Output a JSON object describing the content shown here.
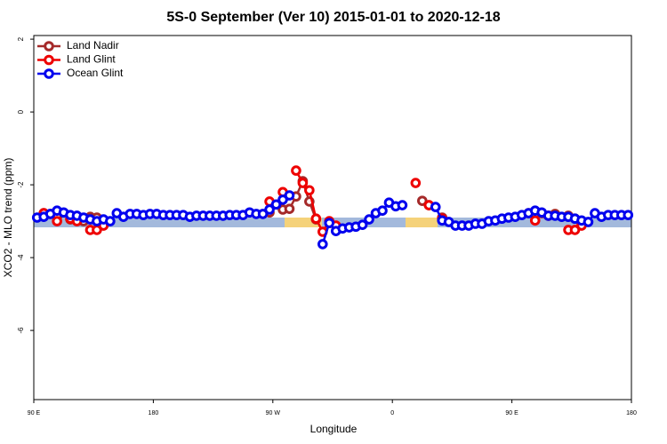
{
  "chart_data": {
    "type": "line",
    "title": "5S-0 September (Ver 10)   2015-01-01 to 2020-12-18",
    "x_label": "Longitude",
    "y_label": "XCO2 - MLO trend (ppm)",
    "x": [
      92.5,
      97.5,
      102.5,
      107.5,
      112.5,
      117.5,
      122.5,
      127.5,
      132.5,
      137.5,
      142.5,
      147.5,
      152.5,
      157.5,
      162.5,
      167.5,
      172.5,
      177.5,
      182.5,
      187.5,
      192.5,
      197.5,
      202.5,
      207.5,
      212.5,
      217.5,
      222.5,
      227.5,
      232.5,
      237.5,
      242.5,
      247.5,
      252.5,
      257.5,
      262.5,
      267.5,
      272.5,
      277.5,
      282.5,
      287.5,
      292.5,
      297.5,
      302.5,
      307.5,
      312.5,
      317.5,
      322.5,
      327.5,
      332.5,
      337.5,
      342.5,
      347.5,
      352.5,
      357.5,
      362.5,
      367.5,
      372.5,
      377.5,
      382.5,
      387.5,
      392.5,
      397.5,
      402.5,
      407.5,
      412.5,
      417.5,
      422.5,
      427.5,
      432.5,
      437.5,
      442.5,
      447.5,
      452.5,
      457.5,
      462.5,
      467.5,
      472.5,
      477.5,
      482.5,
      487.5,
      492.5,
      497.5,
      502.5,
      507.5,
      512.5,
      517.5,
      522.5,
      527.5,
      532.5,
      537.5
    ],
    "xlim": [
      90,
      540
    ],
    "xticks": [
      {
        "value": 90,
        "label": "90 E"
      },
      {
        "value": 180,
        "label": "180"
      },
      {
        "value": 270,
        "label": "90 W"
      },
      {
        "value": 360,
        "label": "0"
      },
      {
        "value": 450,
        "label": "90 E"
      },
      {
        "value": 540,
        "label": "180"
      }
    ],
    "ylim": [
      -7.9,
      2.1
    ],
    "yticks": [
      2,
      0,
      -2,
      -4,
      -6
    ],
    "legend": "top-left",
    "series": [
      {
        "name": "Land Nadir",
        "color": "#a52a2a",
        "values": [
          null,
          -2.78,
          -2.8,
          -2.88,
          null,
          -2.95,
          null,
          -3.0,
          -2.88,
          -2.9,
          -3.0,
          null,
          null,
          null,
          null,
          null,
          null,
          null,
          null,
          null,
          null,
          null,
          null,
          null,
          null,
          null,
          null,
          null,
          null,
          null,
          null,
          null,
          null,
          null,
          null,
          -2.76,
          null,
          -2.68,
          -2.66,
          -2.32,
          -1.9,
          -2.46,
          -2.95,
          null,
          -3.05,
          null,
          null,
          null,
          null,
          null,
          null,
          null,
          null,
          null,
          null,
          null,
          null,
          null,
          -2.44,
          -2.56,
          null,
          -2.9,
          null,
          null,
          null,
          null,
          null,
          null,
          null,
          null,
          null,
          null,
          null,
          null,
          -2.78,
          null,
          -2.78,
          null,
          -2.8,
          null,
          -2.85,
          -2.93,
          -3.07,
          null,
          null,
          null,
          null,
          null,
          null,
          null
        ]
      },
      {
        "name": "Land Glint",
        "color": "#ee0000",
        "values": [
          null,
          -2.78,
          null,
          -3.0,
          null,
          -2.93,
          -3.0,
          null,
          -3.24,
          -3.24,
          -3.12,
          null,
          null,
          null,
          null,
          null,
          null,
          null,
          null,
          null,
          null,
          null,
          null,
          null,
          null,
          null,
          null,
          null,
          null,
          null,
          null,
          null,
          null,
          null,
          null,
          -2.46,
          null,
          -2.2,
          null,
          -1.61,
          -1.95,
          -2.15,
          -2.93,
          -3.29,
          -3.0,
          -3.12,
          null,
          null,
          null,
          null,
          null,
          null,
          null,
          null,
          null,
          null,
          null,
          -1.95,
          null,
          -2.56,
          null,
          -2.93,
          null,
          null,
          null,
          null,
          null,
          null,
          null,
          null,
          null,
          null,
          null,
          null,
          null,
          -2.98,
          null,
          -2.85,
          null,
          null,
          -3.24,
          -3.24,
          -3.12,
          null,
          null,
          null,
          null,
          null,
          null,
          null
        ]
      },
      {
        "name": "Ocean Glint",
        "color": "#0000ee",
        "values": [
          -2.9,
          -2.88,
          -2.8,
          -2.71,
          -2.76,
          -2.83,
          -2.85,
          -2.9,
          -2.95,
          -3.0,
          -2.95,
          -3.0,
          -2.78,
          -2.88,
          -2.8,
          -2.8,
          -2.83,
          -2.8,
          -2.8,
          -2.83,
          -2.83,
          -2.83,
          -2.83,
          -2.88,
          -2.85,
          -2.85,
          -2.85,
          -2.85,
          -2.85,
          -2.83,
          -2.83,
          -2.83,
          -2.76,
          -2.8,
          -2.8,
          -2.68,
          -2.54,
          -2.41,
          -2.29,
          null,
          null,
          null,
          null,
          -3.63,
          -3.05,
          -3.27,
          -3.2,
          -3.17,
          -3.15,
          -3.1,
          -2.95,
          -2.78,
          -2.71,
          -2.49,
          -2.59,
          -2.56,
          null,
          null,
          null,
          null,
          -2.61,
          -2.98,
          -3.02,
          -3.12,
          -3.12,
          -3.12,
          -3.07,
          -3.07,
          -3.0,
          -2.98,
          -2.93,
          -2.9,
          -2.88,
          -2.83,
          -2.78,
          -2.71,
          -2.76,
          -2.85,
          -2.85,
          -2.88,
          -2.88,
          -2.93,
          -2.98,
          -3.02,
          -2.78,
          -2.88,
          -2.83,
          -2.83,
          -2.83,
          -2.83
        ]
      }
    ]
  }
}
